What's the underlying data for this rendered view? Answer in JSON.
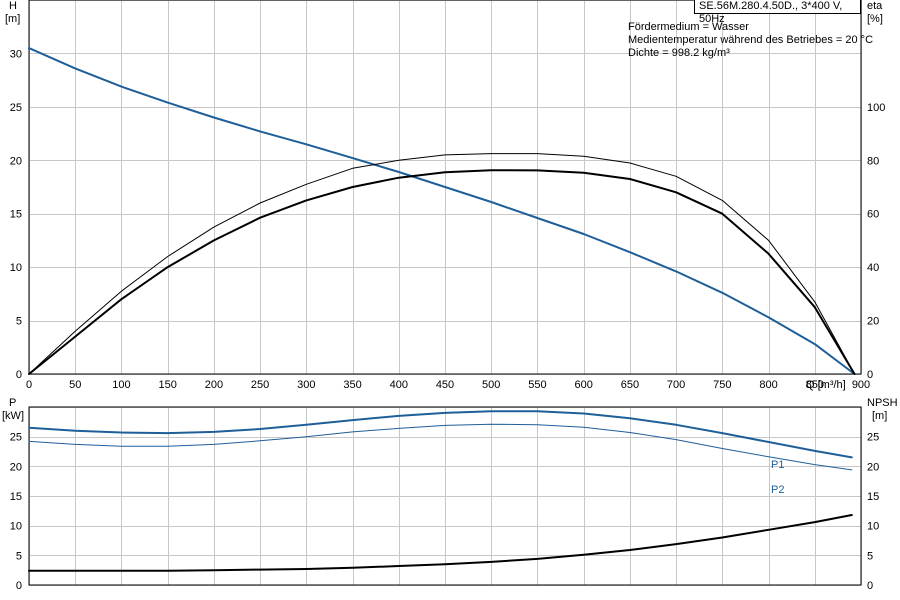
{
  "header": {
    "model": "SE.56M.280.4.50D., 3*400 V, 50Hz",
    "notes": [
      "Fördermedium = Wasser",
      "Medientemperatur während des Betriebes = 20 °C",
      "Dichte = 998.2 kg/m³"
    ]
  },
  "colors": {
    "blue": "#1f5f99",
    "black": "#000000",
    "grid": "#c8c8c8"
  },
  "chart_data": [
    {
      "type": "line",
      "xlabel": "Q [m³/h]",
      "ylabel": "H\n[m]",
      "y2label": "eta\n[%]",
      "xlim": [
        0,
        900
      ],
      "ylim": [
        0,
        35
      ],
      "y2lim": [
        0,
        140
      ],
      "xticks": [
        0,
        50,
        100,
        150,
        200,
        250,
        300,
        350,
        400,
        450,
        500,
        550,
        600,
        650,
        700,
        750,
        800,
        850,
        900
      ],
      "yticks": [
        0,
        5,
        10,
        15,
        20,
        25,
        30
      ],
      "y2ticks": [
        0,
        20,
        40,
        60,
        80,
        100
      ],
      "grid": true,
      "series": [
        {
          "axis": "y",
          "color": "#1f5f99",
          "width": 2,
          "x": [
            0,
            50,
            100,
            150,
            200,
            250,
            300,
            350,
            400,
            450,
            500,
            550,
            600,
            650,
            700,
            750,
            800,
            850,
            893
          ],
          "y": [
            30.5,
            28.6,
            26.9,
            25.4,
            24.0,
            22.7,
            21.5,
            20.2,
            18.9,
            17.5,
            16.1,
            14.6,
            13.1,
            11.4,
            9.6,
            7.6,
            5.3,
            2.8,
            0
          ]
        },
        {
          "axis": "y2",
          "color": "#000000",
          "width": 1,
          "x": [
            0,
            50,
            100,
            150,
            200,
            250,
            300,
            350,
            400,
            450,
            500,
            550,
            600,
            650,
            700,
            750,
            800,
            850,
            893
          ],
          "y": [
            0,
            16,
            31,
            44,
            55,
            64,
            71,
            77,
            80,
            82,
            82.5,
            82.5,
            81.5,
            79,
            74,
            65,
            50,
            27,
            0
          ]
        },
        {
          "axis": "y2",
          "color": "#000000",
          "width": 2,
          "x": [
            0,
            50,
            100,
            150,
            200,
            250,
            300,
            350,
            400,
            450,
            500,
            550,
            600,
            650,
            700,
            750,
            800,
            850,
            893
          ],
          "y": [
            0,
            14,
            28,
            40,
            50,
            58.5,
            65,
            70,
            73.5,
            75.5,
            76.3,
            76.2,
            75.3,
            73,
            68,
            60,
            45,
            25,
            0
          ]
        }
      ]
    },
    {
      "type": "line",
      "ylabel": "P\n[kW]",
      "y2label": "NPSH\n[m]",
      "xlim": [
        0,
        900
      ],
      "ylim": [
        0,
        30
      ],
      "y2lim": [
        0,
        30
      ],
      "yticks": [
        0,
        5,
        10,
        15,
        20,
        25
      ],
      "y2ticks": [
        0,
        5,
        10,
        15,
        20,
        25
      ],
      "grid": true,
      "series": [
        {
          "name": "P1",
          "axis": "y",
          "color": "#1f5f99",
          "width": 2,
          "x": [
            0,
            50,
            100,
            150,
            200,
            250,
            300,
            350,
            400,
            450,
            500,
            550,
            600,
            650,
            700,
            750,
            800,
            850,
            890
          ],
          "y": [
            26.5,
            26.0,
            25.7,
            25.6,
            25.8,
            26.3,
            27.0,
            27.8,
            28.5,
            29.0,
            29.3,
            29.3,
            28.9,
            28.1,
            27.0,
            25.6,
            24.1,
            22.6,
            21.5
          ]
        },
        {
          "name": "P2",
          "axis": "y",
          "color": "#1f5f99",
          "width": 1,
          "x": [
            0,
            50,
            100,
            150,
            200,
            250,
            300,
            350,
            400,
            450,
            500,
            550,
            600,
            650,
            700,
            750,
            800,
            850,
            890
          ],
          "y": [
            24.2,
            23.7,
            23.4,
            23.4,
            23.7,
            24.3,
            25.0,
            25.8,
            26.4,
            26.9,
            27.1,
            27.0,
            26.6,
            25.7,
            24.5,
            23.0,
            21.6,
            20.3,
            19.4
          ]
        },
        {
          "name": "",
          "axis": "y2",
          "color": "#000000",
          "width": 2,
          "x": [
            0,
            50,
            100,
            150,
            200,
            250,
            300,
            350,
            400,
            450,
            500,
            550,
            600,
            650,
            700,
            750,
            800,
            850,
            890
          ],
          "y": [
            2.4,
            2.4,
            2.4,
            2.4,
            2.5,
            2.6,
            2.7,
            2.9,
            3.2,
            3.5,
            3.9,
            4.4,
            5.1,
            5.9,
            6.9,
            8.0,
            9.3,
            10.6,
            11.8
          ]
        }
      ]
    }
  ]
}
